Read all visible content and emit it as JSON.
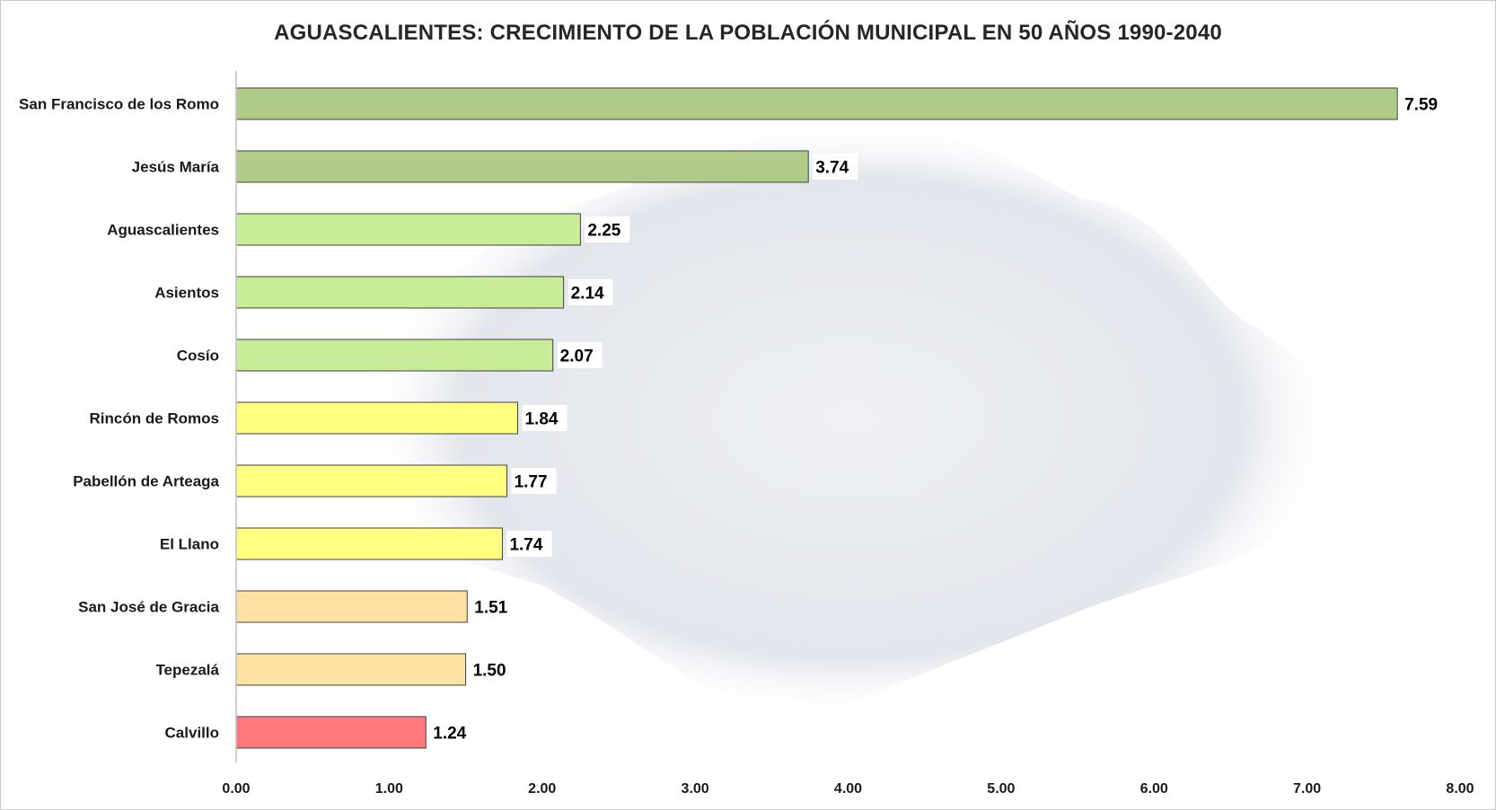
{
  "chart_data": {
    "type": "bar",
    "orientation": "horizontal",
    "title": "AGUASCALIENTES: CRECIMIENTO DE LA POBLACIÓN MUNICIPAL EN 50 AÑOS 1990-2040",
    "xlabel": "",
    "ylabel": "",
    "xlim": [
      0,
      8
    ],
    "x_ticks": [
      "0.00",
      "1.00",
      "2.00",
      "3.00",
      "4.00",
      "5.00",
      "6.00",
      "7.00",
      "8.00"
    ],
    "grid": false,
    "categories": [
      "San Francisco de los Romo",
      "Jesús María",
      "Aguascalientes",
      "Asientos",
      "Cosío",
      "Rincón de Romos",
      "Pabellón de Arteaga",
      "El Llano",
      "San José de Gracia",
      "Tepezalá",
      "Calvillo"
    ],
    "values": [
      7.59,
      3.74,
      2.25,
      2.14,
      2.07,
      1.84,
      1.77,
      1.74,
      1.51,
      1.5,
      1.24
    ],
    "value_labels": [
      "7.59",
      "3.74",
      "2.25",
      "2.14",
      "2.07",
      "1.84",
      "1.77",
      "1.74",
      "1.51",
      "1.50",
      "1.24"
    ],
    "colors": [
      "#afcb87",
      "#afcb87",
      "#c8ec98",
      "#c8ec98",
      "#c8ec98",
      "#ffff80",
      "#ffff80",
      "#ffff80",
      "#fde1a5",
      "#fde1a5",
      "#ff7b7b"
    ]
  }
}
